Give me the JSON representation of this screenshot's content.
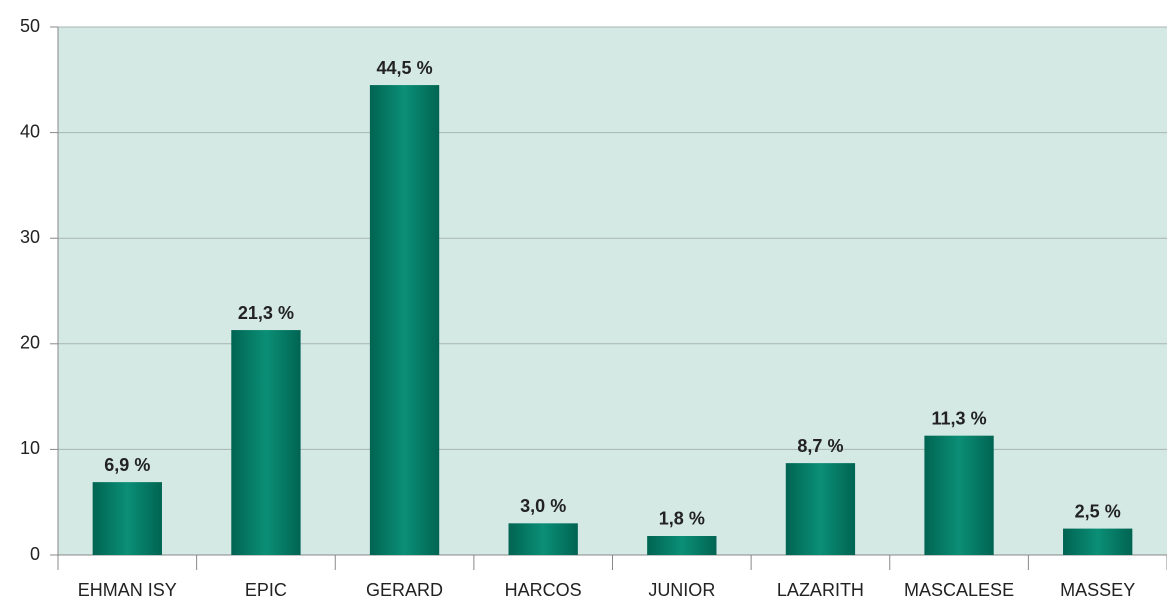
{
  "chart_data": {
    "type": "bar",
    "categories": [
      "EHMAN ISY",
      "EPIC",
      "GERARD",
      "HARCOS",
      "JUNIOR",
      "LAZARITH",
      "MASCALESE",
      "MASSEY"
    ],
    "values": [
      6.9,
      21.3,
      44.5,
      3.0,
      1.8,
      8.7,
      11.3,
      2.5
    ],
    "value_labels": [
      "6,9 %",
      "21,3 %",
      "44,5 %",
      "3,0 %",
      "1,8 %",
      "8,7 %",
      "11,3 %",
      "2,5 %"
    ],
    "color": "#0b8f76",
    "ylim": [
      0,
      50
    ],
    "yticks": [
      0,
      10,
      20,
      30,
      40,
      50
    ],
    "grid": true
  }
}
